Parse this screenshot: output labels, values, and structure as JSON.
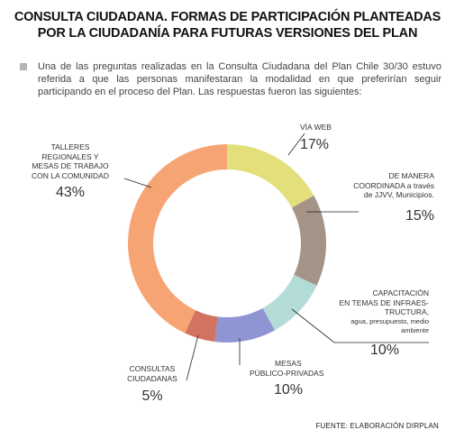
{
  "title_line1": "CONSULTA CIUDADANA. FORMAS DE PARTICIPACIÓN PLANTEADAS",
  "title_line2": "POR LA CIUDADANÍA PARA FUTURAS VERSIONES DEL PLAN",
  "intro_text": "Una de las preguntas realizadas en la Consulta Ciudadana del Plan Chile 30/30 estuvo referida a que las personas manifestaran la modalidad en que preferirían seguir participando en el proceso del Plan. Las respuestas fueron las siguientes:",
  "source": "FUENTE: ELABORACIÓN DIRPLAN",
  "chart_data": {
    "type": "pie",
    "style": "donut",
    "slices": [
      {
        "label": "VÍA WEB",
        "value": 17,
        "pct_label": "17%",
        "color": "#e3e07c"
      },
      {
        "label": "DE MANERA COORDINADA a través de JJVV, Municipios.",
        "value": 15,
        "pct_label": "15%",
        "color": "#a49487"
      },
      {
        "label": "CAPACITACIÓN EN TEMAS DE INFRAES-TRUCTURA, agua, presupuesto, medio ambiente",
        "value": 10,
        "pct_label": "10%",
        "color": "#b3dcd6"
      },
      {
        "label": "MESAS PÚBLICO-PRIVADAS",
        "value": 10,
        "pct_label": "10%",
        "color": "#8f94d3"
      },
      {
        "label": "CONSULTAS CIUDADANAS",
        "value": 5,
        "pct_label": "5%",
        "color": "#d27260"
      },
      {
        "label": "TALLERES REGIONALES Y MESAS DE TRABAJO CON LA COMUNIDAD",
        "value": 43,
        "pct_label": "43%",
        "color": "#f6a473"
      }
    ]
  },
  "labels": {
    "web": {
      "line1": "VÍA WEB"
    },
    "coord": {
      "line1": "DE MANERA",
      "line2": "COORDINADA a través",
      "line3": "de JJVV, Municipios."
    },
    "capac": {
      "line1": "CAPACITACIÓN",
      "line2": "EN TEMAS DE INFRAES-",
      "line3": "TRUCTURA,",
      "line4": "agua, presupuesto, medio",
      "line5": "ambiente"
    },
    "mesas": {
      "line1": "MESAS",
      "line2": "PÚBLICO-PRIVADAS"
    },
    "consultas": {
      "line1": "CONSULTAS",
      "line2": "CIUDADANAS"
    },
    "talleres": {
      "line1": "TALLERES",
      "line2": "REGIONALES Y",
      "line3": "MESAS DE TRABAJO",
      "line4": "CON LA COMUNIDAD"
    }
  }
}
